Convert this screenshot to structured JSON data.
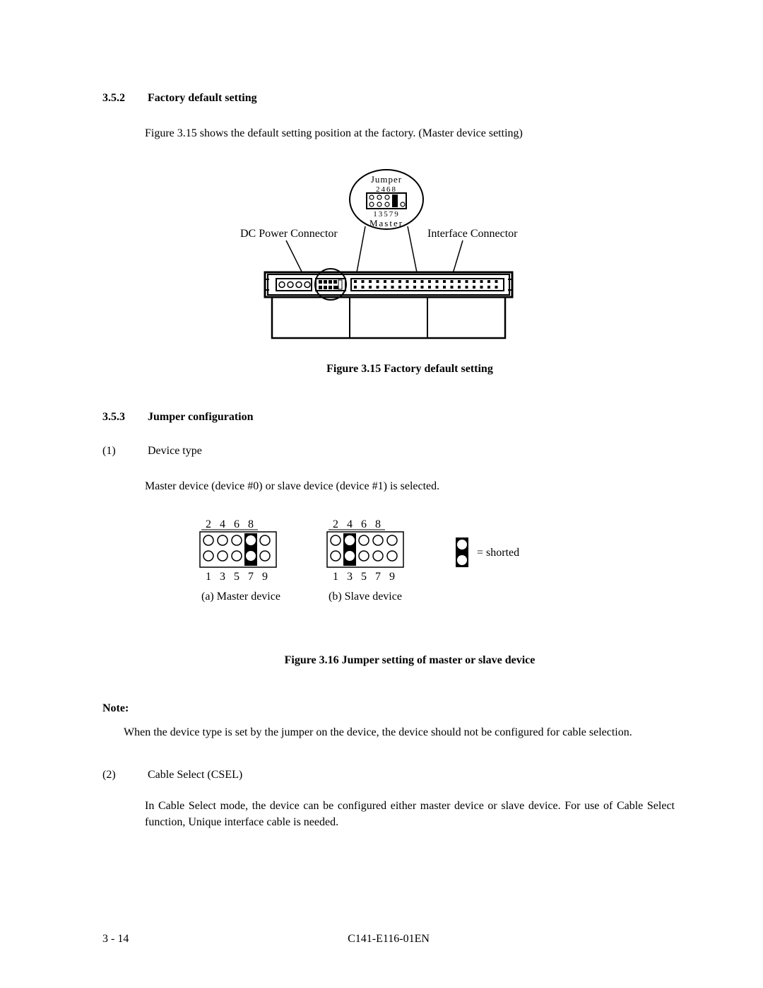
{
  "section_a": {
    "num": "3.5.2",
    "title": "Factory default setting",
    "body": "Figure 3.15 shows the default setting position at the factory. (Master device setting)"
  },
  "figure15": {
    "dc_label": "DC Power Connector",
    "if_label": "Interface Connector",
    "jumper_title": "Jumper",
    "jumper_top_nums": "2468",
    "jumper_bot_nums": "13579",
    "jumper_mode": "Master",
    "caption": "Figure 3.15   Factory default setting"
  },
  "section_b": {
    "num": "3.5.3",
    "title": "Jumper configuration"
  },
  "item1": {
    "num": "(1)",
    "title": "Device type",
    "body": "Master device (device #0) or slave device (device #1) is selected."
  },
  "figure16": {
    "top_labels": [
      "2",
      "4",
      "6",
      "8"
    ],
    "bot_labels": [
      "1",
      "3",
      "5",
      "7",
      "9"
    ],
    "caption_a": "(a)  Master device",
    "caption_b": "(b)  Slave device",
    "legend": "= shorted",
    "master_shorted_cols": [
      3
    ],
    "master_extra_filled": [
      [
        1,
        3
      ]
    ],
    "slave_shorted_cols": [
      1
    ],
    "caption": "Figure 3.16   Jumper setting of master or slave device",
    "pin_radius": 7,
    "col_spacing": 20,
    "row_spacing": 22
  },
  "note": {
    "label": "Note:",
    "body": "When the device type is set by the jumper on the device, the device should not be configured for cable selection."
  },
  "item2": {
    "num": "(2)",
    "title": "Cable Select (CSEL)",
    "body": "In Cable Select mode, the device can be configured either master device or slave device. For use of Cable Select function, Unique interface cable is needed."
  },
  "footer": {
    "left": "3 - 14",
    "center": "C141-E116-01EN"
  }
}
